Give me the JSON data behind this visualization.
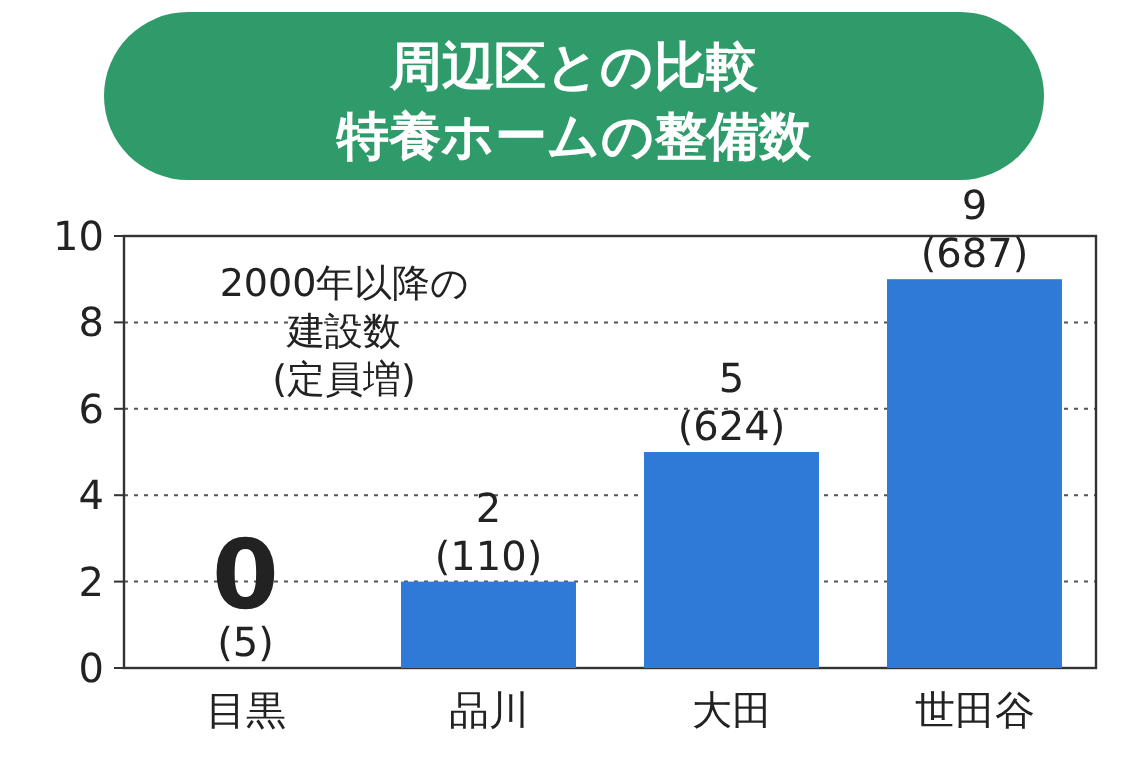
{
  "chart_data": {
    "type": "bar",
    "title": "周辺区との比較",
    "subtitle": "特養ホームの整備数",
    "categories": [
      "目黒",
      "品川",
      "大田",
      "世田谷"
    ],
    "values": [
      0,
      2,
      5,
      9
    ],
    "value_labels": [
      "0\n(5)",
      "2\n(110)",
      "5\n(624)",
      "9\n(687)"
    ],
    "color": "#2f7ad6",
    "ylim": [
      0,
      10
    ],
    "yticks": [
      0,
      2,
      4,
      6,
      8,
      10
    ],
    "grid": "y",
    "annotations": [
      "2000年以降の",
      "建設数",
      "(定員増)"
    ]
  }
}
